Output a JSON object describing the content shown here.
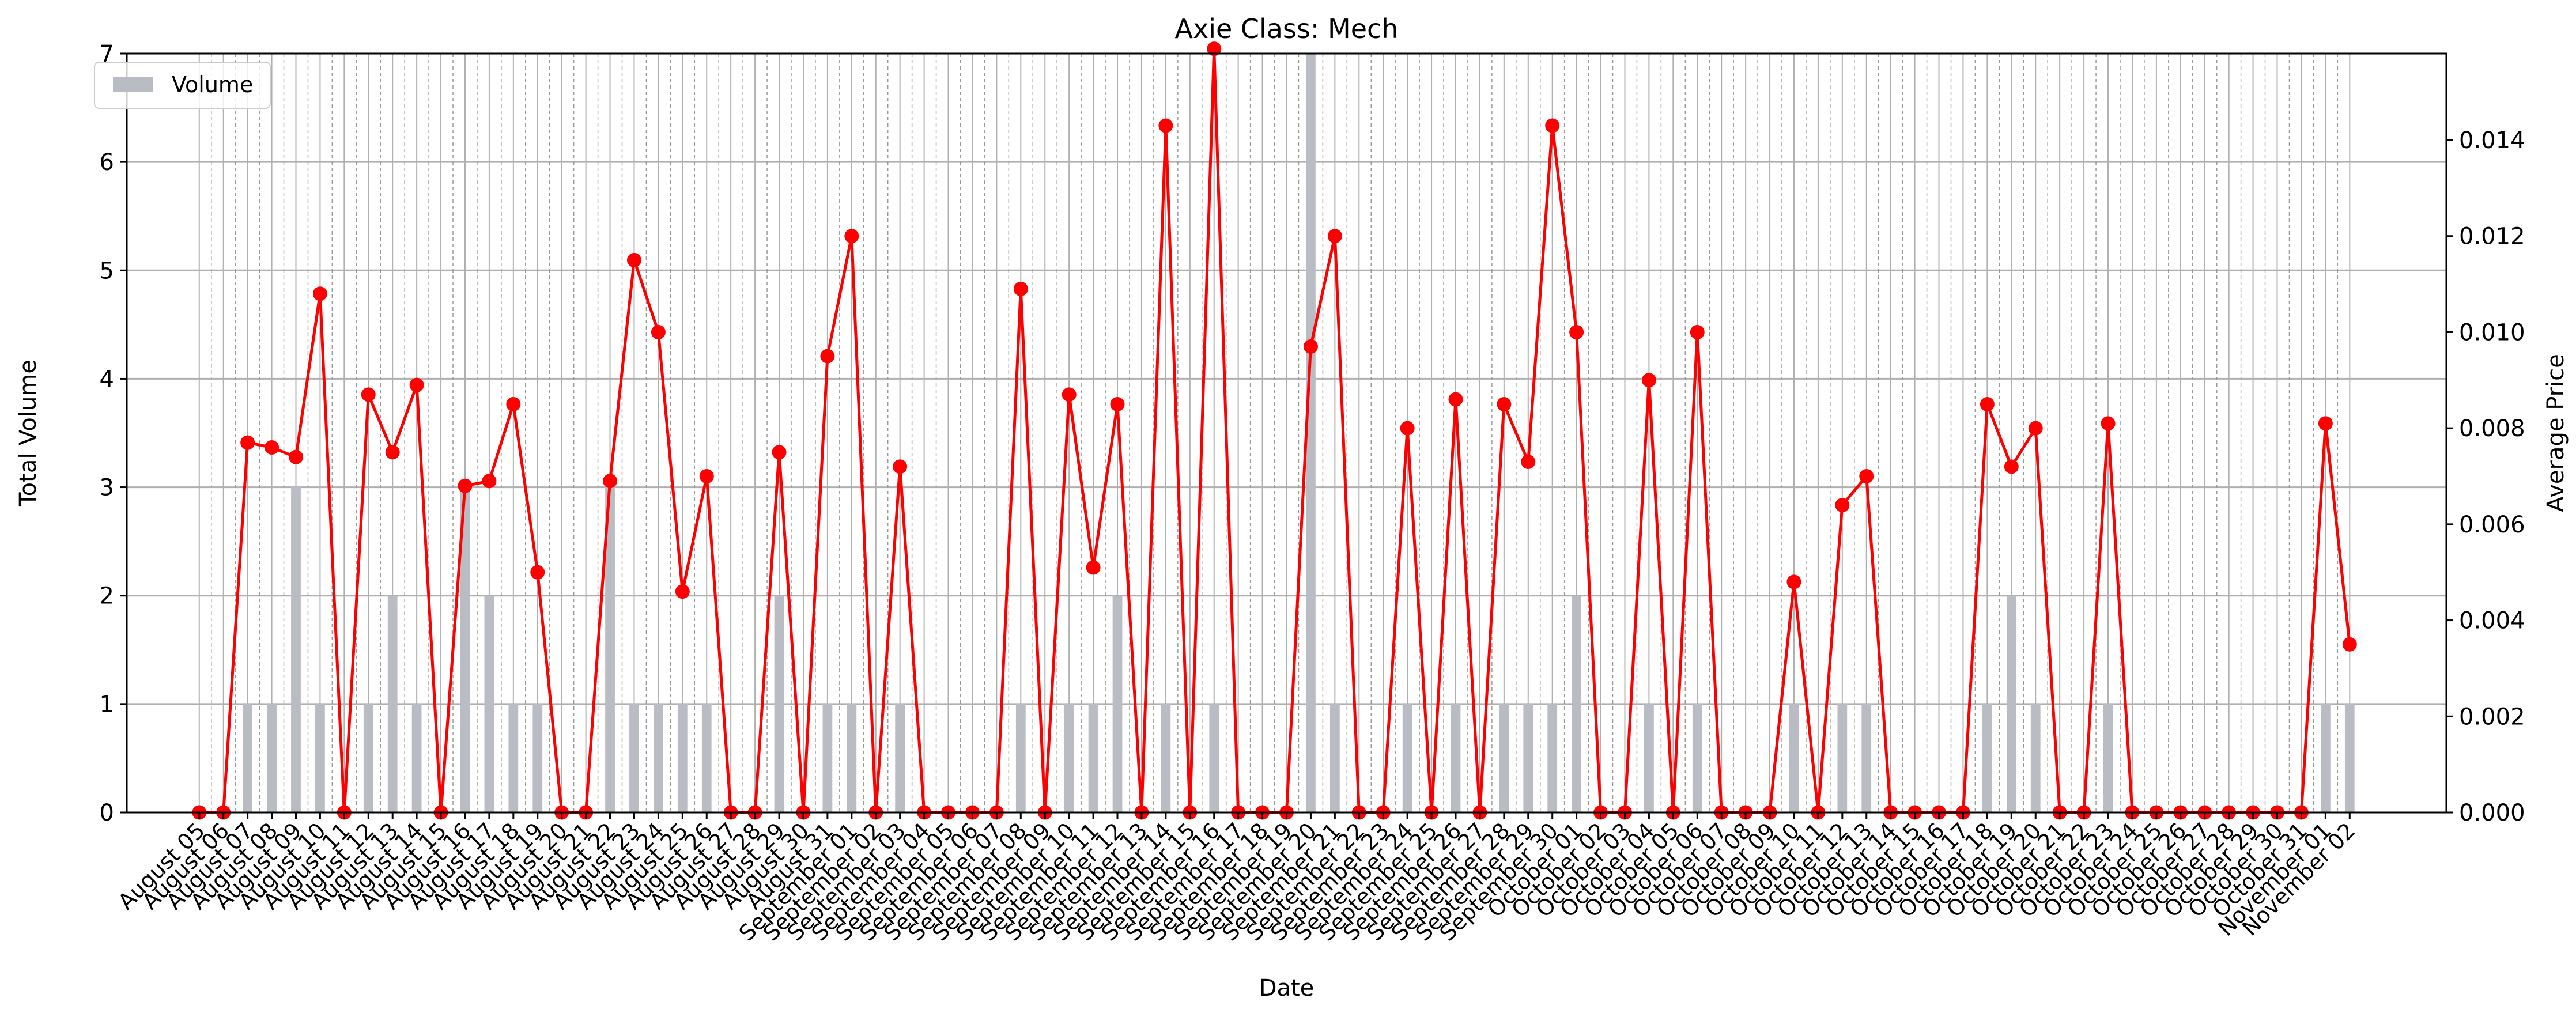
{
  "chart_data": {
    "type": "bar",
    "title": "Axie Class: Mech",
    "xlabel": "Date",
    "ylabel": "Total Volume",
    "y2label": "Average Price",
    "ylim": [
      0,
      7
    ],
    "y2lim": [
      0,
      0.0158
    ],
    "yticks": [
      0,
      1,
      2,
      3,
      4,
      5,
      6,
      7
    ],
    "y2ticks": [
      0.0,
      0.002,
      0.004,
      0.006,
      0.008,
      0.01,
      0.012,
      0.014
    ],
    "y2tick_labels": [
      "0.000",
      "0.002",
      "0.004",
      "0.006",
      "0.008",
      "0.010",
      "0.012",
      "0.014"
    ],
    "grid": true,
    "legend_position": "top-left",
    "colors": {
      "bars": "#b9bcc2",
      "line": "#ff0000",
      "grid": "#b0b0b0"
    },
    "categories": [
      "August 05",
      "August 06",
      "August 07",
      "August 08",
      "August 09",
      "August 10",
      "August 11",
      "August 12",
      "August 13",
      "August 14",
      "August 15",
      "August 16",
      "August 17",
      "August 18",
      "August 19",
      "August 20",
      "August 21",
      "August 22",
      "August 23",
      "August 24",
      "August 25",
      "August 26",
      "August 27",
      "August 28",
      "August 29",
      "August 30",
      "August 31",
      "September 01",
      "September 02",
      "September 03",
      "September 04",
      "September 05",
      "September 06",
      "September 07",
      "September 08",
      "September 09",
      "September 10",
      "September 11",
      "September 12",
      "September 13",
      "September 14",
      "September 15",
      "September 16",
      "September 17",
      "September 18",
      "September 19",
      "September 20",
      "September 21",
      "September 22",
      "September 23",
      "September 24",
      "September 25",
      "September 26",
      "September 27",
      "September 28",
      "September 29",
      "September 30",
      "October 01",
      "October 02",
      "October 03",
      "October 04",
      "October 05",
      "October 06",
      "October 07",
      "October 08",
      "October 09",
      "October 10",
      "October 11",
      "October 12",
      "October 13",
      "October 14",
      "October 15",
      "October 16",
      "October 17",
      "October 18",
      "October 19",
      "October 20",
      "October 21",
      "October 22",
      "October 23",
      "October 24",
      "October 25",
      "October 26",
      "October 27",
      "October 28",
      "October 29",
      "October 30",
      "October 31",
      "November 01",
      "November 02"
    ],
    "series": [
      {
        "name": "Volume",
        "kind": "bar",
        "axis": "left",
        "values": [
          0,
          0,
          1,
          1,
          3,
          1,
          0,
          1,
          2,
          1,
          0,
          3,
          2,
          1,
          1,
          0,
          0,
          3,
          1,
          1,
          1,
          1,
          0,
          0,
          2,
          0,
          1,
          1,
          0,
          1,
          0,
          0,
          0,
          0,
          1,
          0,
          1,
          1,
          2,
          0,
          1,
          0,
          1,
          0,
          0,
          0,
          7,
          1,
          0,
          0,
          1,
          0,
          1,
          0,
          1,
          1,
          1,
          2,
          0,
          0,
          1,
          0,
          1,
          0,
          0,
          0,
          1,
          0,
          1,
          1,
          0,
          0,
          0,
          0,
          1,
          2,
          1,
          0,
          0,
          1,
          0,
          0,
          0,
          0,
          0,
          0,
          0,
          0,
          1,
          1
        ]
      },
      {
        "name": "",
        "kind": "line",
        "axis": "right",
        "values": [
          0,
          0,
          0.0077,
          0.0076,
          0.0074,
          0.0108,
          0,
          0.0087,
          0.0075,
          0.0089,
          0,
          0.0068,
          0.0069,
          0.0085,
          0.005,
          0,
          0,
          0.0069,
          0.0115,
          0.01,
          0.0046,
          0.007,
          0,
          0,
          0.0075,
          0,
          0.0095,
          0.012,
          0,
          0.0072,
          0,
          0,
          0,
          0,
          0.0109,
          0,
          0.0087,
          0.0051,
          0.0085,
          0,
          0.0143,
          0,
          0.0159,
          0,
          0,
          0,
          0.0097,
          0.012,
          0,
          0,
          0.008,
          0,
          0.0086,
          0,
          0.0085,
          0.0073,
          0.0143,
          0.01,
          0,
          0,
          0.009,
          0,
          0.01,
          0,
          0,
          0,
          0.0048,
          0,
          0.0064,
          0.007,
          0,
          0,
          0,
          0,
          0.0085,
          0.0072,
          0.008,
          0,
          0,
          0.0081,
          0,
          0,
          0,
          0,
          0,
          0,
          0,
          0,
          0.0081,
          0.0035
        ]
      }
    ]
  }
}
